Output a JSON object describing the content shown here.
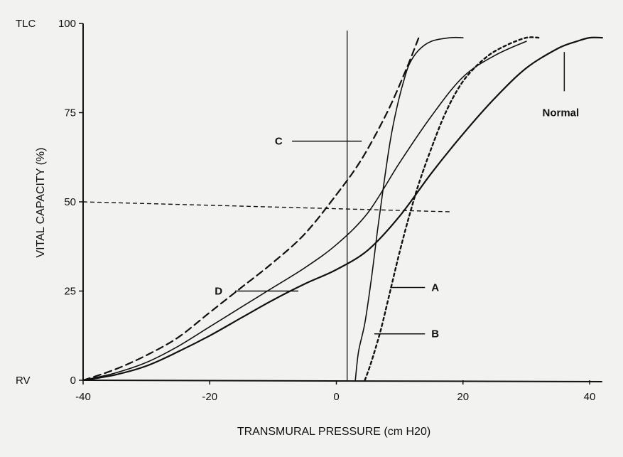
{
  "chart_data": {
    "type": "line",
    "title": "",
    "xlabel": "TRANSMURAL PRESSURE (cm H20)",
    "ylabel": "VITAL CAPACITY (%)",
    "xlim": [
      -40,
      40
    ],
    "ylim": [
      0,
      100
    ],
    "x_ticks": [
      {
        "value": -40,
        "label": "-40"
      },
      {
        "value": -20,
        "label": "-20"
      },
      {
        "value": 0,
        "label": "0"
      },
      {
        "value": 20,
        "label": "20"
      },
      {
        "value": 40,
        "label": "40"
      }
    ],
    "y_ticks": [
      {
        "value": 0,
        "label": "0"
      },
      {
        "value": 25,
        "label": "25"
      },
      {
        "value": 50,
        "label": "50"
      },
      {
        "value": 75,
        "label": "75"
      },
      {
        "value": 100,
        "label": "100"
      }
    ],
    "y_side_labels": [
      {
        "value": 100,
        "label": "TLC"
      },
      {
        "value": 0,
        "label": "RV"
      }
    ],
    "reference_line": {
      "y": 50,
      "x_from": -40,
      "x_to": 18,
      "style": "dash"
    },
    "grid": false,
    "series": [
      {
        "name": "Normal",
        "style": "solid-bold",
        "x": [
          -40,
          -35,
          -30,
          -25,
          -20,
          -15,
          -10,
          -5,
          0,
          5,
          10,
          15,
          20,
          25,
          30,
          35,
          38,
          40,
          42
        ],
        "y": [
          0,
          1.5,
          4,
          8,
          12.5,
          17.5,
          22.5,
          27,
          31,
          36.5,
          46,
          58,
          69,
          79,
          87.5,
          93,
          95,
          96,
          96
        ]
      },
      {
        "name": "A",
        "style": "dotted",
        "x": [
          4.5,
          5.5,
          7,
          8.5,
          10,
          11.5,
          13,
          15,
          17,
          19,
          21,
          24,
          27,
          30,
          32
        ],
        "y": [
          0,
          5,
          14,
          25,
          36,
          46,
          55,
          65,
          74,
          81,
          86,
          91,
          94,
          96,
          96
        ]
      },
      {
        "name": "B",
        "style": "solid",
        "x": [
          3,
          3.5,
          4.5,
          5.5,
          6.5,
          7.5,
          8.5,
          9.5,
          10.5,
          11.5,
          13,
          15,
          18,
          20
        ],
        "y": [
          0,
          8,
          16,
          28,
          42,
          55,
          67,
          76,
          83,
          88.5,
          92.5,
          95,
          96,
          96
        ]
      },
      {
        "name": "C",
        "style": "dashed",
        "x": [
          -40,
          -35,
          -30,
          -25,
          -20,
          -15,
          -10,
          -5,
          0,
          4,
          8,
          11,
          13
        ],
        "y": [
          0,
          3,
          7,
          12,
          19,
          26,
          33,
          41,
          52,
          62,
          75,
          87,
          96
        ]
      },
      {
        "name": "D",
        "style": "solid",
        "x": [
          -40,
          -35,
          -30,
          -25,
          -20,
          -15,
          -10,
          -5,
          0,
          5,
          10,
          15,
          20,
          25,
          30
        ],
        "y": [
          0,
          2,
          5,
          9.5,
          15,
          20.5,
          26,
          31.5,
          38,
          47,
          61,
          74,
          85,
          91,
          95
        ]
      }
    ],
    "annotations": [
      {
        "label": "Normal",
        "text_x": 36,
        "text_y": 75,
        "line_from": [
          36,
          81
        ],
        "line_to": [
          36,
          92
        ]
      },
      {
        "label": "A",
        "text_x": 15,
        "text_y": 26,
        "line_from": [
          14,
          26
        ],
        "line_to": [
          8.5,
          26
        ]
      },
      {
        "label": "B",
        "text_x": 15,
        "text_y": 13,
        "line_from": [
          14,
          13
        ],
        "line_to": [
          6,
          13
        ]
      },
      {
        "label": "C",
        "text_x": -8.5,
        "text_y": 67,
        "line_from": [
          -7,
          67
        ],
        "line_to": [
          4,
          67
        ]
      },
      {
        "label": "D",
        "text_x": -18,
        "text_y": 25,
        "line_from": [
          -16,
          25
        ],
        "line_to": [
          -6,
          25
        ]
      }
    ]
  }
}
